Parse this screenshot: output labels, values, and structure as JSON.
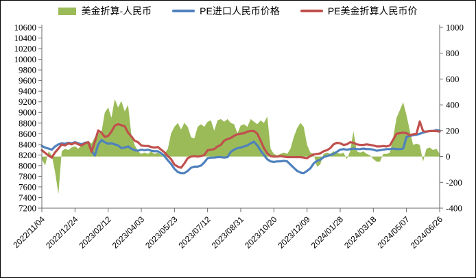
{
  "chart_data": {
    "type": "combo",
    "title": "",
    "grid": false,
    "legend_position": "top",
    "x_start": "2022/11/04",
    "x_end": "2024/06/26",
    "sample_interval_days": 5,
    "x_tick_labels": [
      "2022/11/04",
      "2022/12/24",
      "2023/02/12",
      "2023/04/03",
      "2023/05/23",
      "2023/07/12",
      "2023/08/31",
      "2023/10/20",
      "2023/12/09",
      "2024/01/28",
      "2024/03/18",
      "2024/05/07",
      "2024/06/26"
    ],
    "left_axis": {
      "min": 7200,
      "max": 10600,
      "tick_step": 200,
      "ticks": [
        10600,
        10400,
        10200,
        10000,
        9800,
        9600,
        9400,
        9200,
        9000,
        8800,
        8600,
        8400,
        8200,
        8000,
        7800,
        7600,
        7400,
        7200
      ]
    },
    "right_axis": {
      "min": -400,
      "max": 1000,
      "tick_step": 200,
      "ticks": [
        1000,
        800,
        600,
        400,
        200,
        0,
        -200,
        -400
      ]
    },
    "series": [
      {
        "name": "美金折算-人民币",
        "type": "area",
        "axis": "right",
        "color": "#9BBB59",
        "values": [
          -20,
          -70,
          40,
          10,
          -120,
          -290,
          40,
          60,
          50,
          70,
          80,
          60,
          90,
          110,
          120,
          100,
          150,
          180,
          190,
          340,
          380,
          300,
          445,
          380,
          430,
          350,
          400,
          170,
          90,
          40,
          20,
          30,
          20,
          40,
          20,
          30,
          10,
          20,
          60,
          180,
          230,
          260,
          210,
          260,
          230,
          150,
          140,
          230,
          250,
          230,
          270,
          280,
          200,
          280,
          290,
          270,
          290,
          260,
          250,
          180,
          240,
          250,
          230,
          290,
          270,
          250,
          280,
          260,
          310,
          60,
          20,
          10,
          20,
          30,
          20,
          60,
          150,
          220,
          260,
          230,
          90,
          30,
          20,
          -80,
          -60,
          20,
          30,
          20,
          40,
          30,
          20,
          30,
          -20,
          40,
          195,
          40,
          30,
          40,
          20,
          10,
          -20,
          -40,
          -40,
          20,
          20,
          30,
          150,
          300,
          360,
          420,
          320,
          200,
          90,
          100,
          90,
          -40,
          60,
          70,
          50,
          60,
          20
        ]
      },
      {
        "name": "PE进口人民币价格",
        "type": "line",
        "axis": "left",
        "color": "#4F81BD",
        "values": [
          8370,
          8340,
          8320,
          8300,
          8360,
          8400,
          8420,
          8410,
          8430,
          8420,
          8440,
          8420,
          8400,
          8430,
          8440,
          8280,
          8190,
          8400,
          8480,
          8440,
          8410,
          8420,
          8400,
          8380,
          8330,
          8340,
          8360,
          8320,
          8290,
          8280,
          8300,
          8290,
          8300,
          8280,
          8270,
          8270,
          8230,
          8180,
          8100,
          8030,
          7940,
          7880,
          7860,
          7860,
          7900,
          7960,
          7980,
          7980,
          8000,
          8060,
          8140,
          8150,
          8150,
          8160,
          8160,
          8150,
          8160,
          8260,
          8300,
          8330,
          8340,
          8360,
          8380,
          8420,
          8450,
          8380,
          8280,
          8200,
          8120,
          8080,
          8070,
          8080,
          8080,
          8090,
          8080,
          8020,
          7960,
          7900,
          7870,
          7860,
          7900,
          7950,
          8040,
          8090,
          8110,
          8160,
          8180,
          8200,
          8220,
          8260,
          8300,
          8310,
          8300,
          8310,
          8320,
          8310,
          8310,
          8320,
          8310,
          8310,
          8300,
          8280,
          8290,
          8300,
          8310,
          8310,
          8320,
          8310,
          8310,
          8320,
          8540,
          8560,
          8570,
          8580,
          8600,
          8620,
          8640,
          8650,
          8650,
          8670,
          8660
        ]
      },
      {
        "name": "PE美金折算人民币价",
        "type": "line",
        "axis": "left",
        "color": "#C0504D",
        "values": [
          8290,
          8240,
          8190,
          8150,
          8250,
          8320,
          8400,
          8380,
          8420,
          8400,
          8430,
          8400,
          8380,
          8420,
          8440,
          8260,
          8450,
          8660,
          8620,
          8540,
          8560,
          8640,
          8750,
          8780,
          8760,
          8740,
          8620,
          8550,
          8470,
          8440,
          8380,
          8370,
          8370,
          8350,
          8340,
          8350,
          8300,
          8250,
          8180,
          8120,
          8020,
          7980,
          7960,
          8040,
          8140,
          8170,
          8180,
          8170,
          8180,
          8200,
          8290,
          8300,
          8310,
          8360,
          8390,
          8470,
          8500,
          8520,
          8560,
          8590,
          8600,
          8610,
          8640,
          8650,
          8650,
          8600,
          8470,
          8330,
          8230,
          8180,
          8170,
          8170,
          8180,
          8170,
          8160,
          8160,
          8160,
          8160,
          8160,
          8150,
          8140,
          8180,
          8210,
          8220,
          8230,
          8270,
          8290,
          8330,
          8400,
          8430,
          8420,
          8390,
          8400,
          8440,
          8430,
          8400,
          8390,
          8390,
          8400,
          8390,
          8380,
          8360,
          8360,
          8370,
          8360,
          8380,
          8490,
          8600,
          8610,
          8620,
          8610,
          8570,
          8590,
          8600,
          8830,
          8650,
          8640,
          8650,
          8650,
          8650,
          8640
        ]
      }
    ]
  }
}
